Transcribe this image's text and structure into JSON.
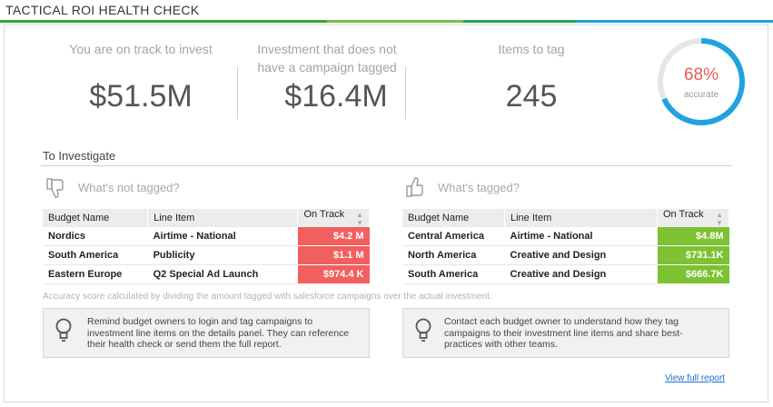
{
  "header": {
    "title": "TACTICAL ROI HEALTH CHECK",
    "bar_colors": [
      "#32ab2f",
      "#7ac043",
      "#28a35a",
      "#1fa3e0"
    ]
  },
  "kpis": [
    {
      "label": "You are on track to invest",
      "value": "$51.5M"
    },
    {
      "label": "Investment that does not have a campaign tagged",
      "value": "$16.4M"
    },
    {
      "label": "Items to tag",
      "value": "245"
    }
  ],
  "gauge": {
    "percent_text": "68%",
    "sub": "accurate",
    "fraction": 0.68,
    "color": "#1fa3e0",
    "track_color": "#e6e6e6"
  },
  "section": {
    "title": "To Investigate"
  },
  "not_tagged": {
    "heading": "What's not tagged?",
    "icon": "thumbs-down-icon",
    "columns": [
      "Budget Name",
      "Line Item",
      "On Track"
    ],
    "rows": [
      {
        "budget": "Nordics",
        "item": "Airtime - National",
        "value": "$4.2 M"
      },
      {
        "budget": "South America",
        "item": "Publicity",
        "value": "$1.1 M"
      },
      {
        "budget": "Eastern Europe",
        "item": "Q2 Special Ad Launch",
        "value": "$974.4 K"
      }
    ]
  },
  "tagged": {
    "heading": "What's tagged?",
    "icon": "thumbs-up-icon",
    "columns": [
      "Budget Name",
      "Line Item",
      "On Track"
    ],
    "rows": [
      {
        "budget": "Central America",
        "item": "Airtime - National",
        "value": "$4.8M"
      },
      {
        "budget": "North America",
        "item": "Creative and Design",
        "value": "$731.1K"
      },
      {
        "budget": "South America",
        "item": "Creative and Design",
        "value": "$666.7K"
      }
    ]
  },
  "note": "Accuracy score calculated by dividing the amount tagged with salesforce campaigns over the actual investment.",
  "tips": [
    {
      "icon": "lightbulb-icon",
      "text": "Remind budget owners to login and tag campaigns to investment line items on the details panel. They can reference their health check or send them the full report."
    },
    {
      "icon": "lightbulb-icon",
      "text": "Contact each budget owner to understand how they tag campaigns to their investment line items and share best-practices with other teams."
    }
  ],
  "link": "View full report"
}
